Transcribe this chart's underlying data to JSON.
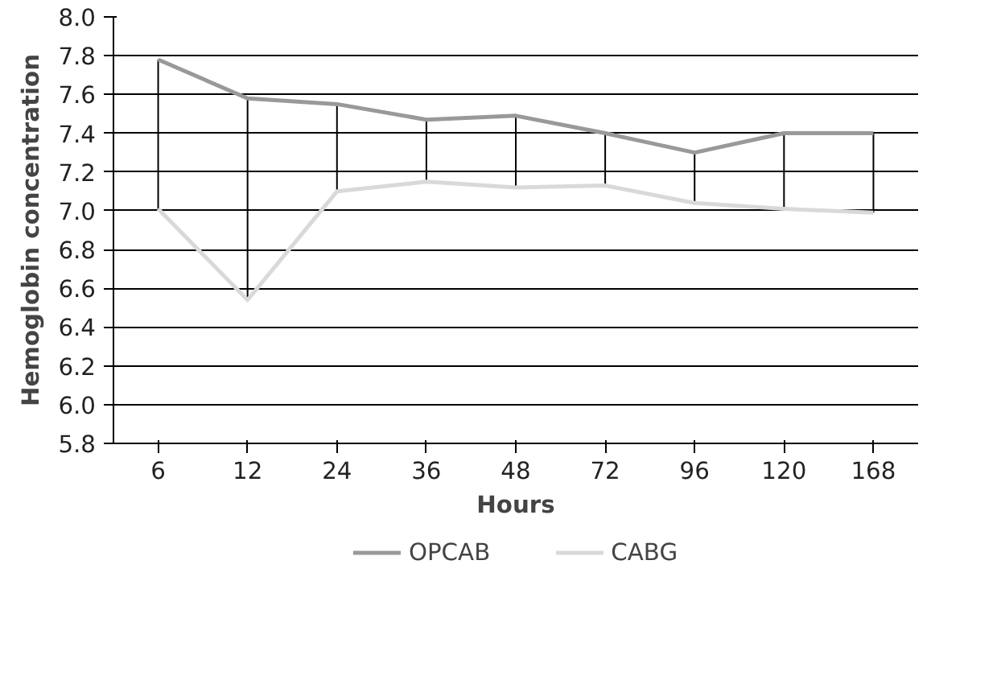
{
  "chart_data": {
    "type": "line",
    "xlabel": "Hours",
    "ylabel": "Hemoglobin concentration",
    "categories": [
      "6",
      "12",
      "24",
      "36",
      "48",
      "72",
      "96",
      "120",
      "168"
    ],
    "series": [
      {
        "name": "OPCAB",
        "color": "#999999",
        "values": [
          7.78,
          7.58,
          7.55,
          7.47,
          7.49,
          7.4,
          7.3,
          7.4,
          7.4
        ],
        "errors": [
          [
            7.01,
            7.78
          ],
          [
            6.54,
            7.58
          ],
          [
            7.1,
            7.55
          ],
          [
            7.15,
            7.47
          ],
          [
            7.12,
            7.49
          ],
          [
            7.13,
            7.4
          ],
          [
            7.04,
            7.3
          ],
          [
            7.01,
            7.4
          ],
          [
            6.99,
            7.4
          ]
        ]
      },
      {
        "name": "CABG",
        "color": "#d9d9d9",
        "values": [
          7.01,
          6.54,
          7.1,
          7.15,
          7.12,
          7.13,
          7.04,
          7.01,
          6.99
        ]
      }
    ],
    "ylim": [
      5.8,
      8.0
    ],
    "yticks": [
      5.8,
      {
        "value": 6,
        "label": "6.0"
      },
      6.2,
      6.4,
      6.6,
      6.8,
      {
        "value": 7,
        "label": "7.0"
      },
      7.2,
      7.4,
      7.6,
      7.8,
      {
        "value": 8,
        "label": "8.0"
      }
    ],
    "grid": "y",
    "legend": "bottom",
    "marker": "none",
    "line_style": "solid"
  }
}
